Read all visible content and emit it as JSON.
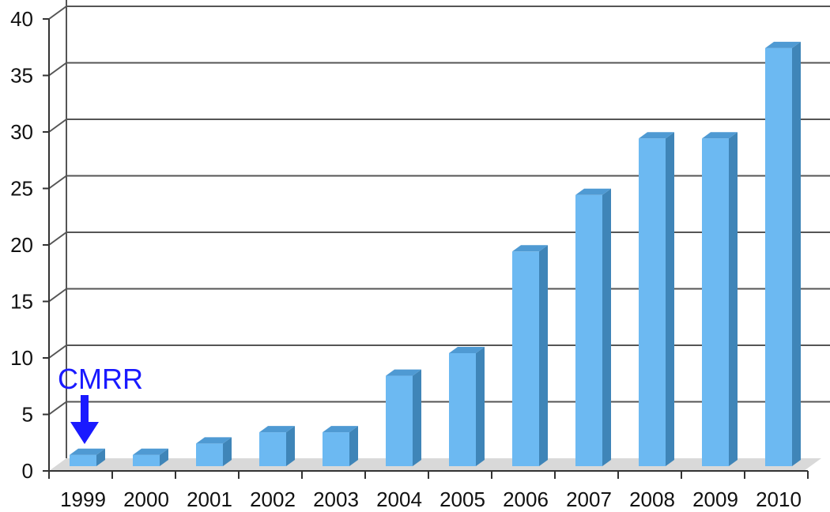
{
  "chart_data": {
    "type": "bar",
    "title": "",
    "xlabel": "",
    "ylabel": "",
    "categories": [
      "1999",
      "2000",
      "2001",
      "2002",
      "2003",
      "2004",
      "2005",
      "2006",
      "2007",
      "2008",
      "2009",
      "2010"
    ],
    "values": [
      1,
      1,
      2,
      3,
      3,
      8,
      10,
      19,
      24,
      29,
      29,
      37
    ],
    "ylim": [
      0,
      40
    ],
    "yticks": [
      "0",
      "5",
      "10",
      "15",
      "20",
      "25",
      "30",
      "35",
      "40"
    ],
    "grid": true,
    "style": "3d",
    "bar_color": "#6cb9f2",
    "bar_side_color": "#3f85b8",
    "bar_top_color": "#4f9ad3",
    "annotation": {
      "text": "CMRR",
      "target_category": "1999",
      "color": "#1a1aff"
    }
  }
}
